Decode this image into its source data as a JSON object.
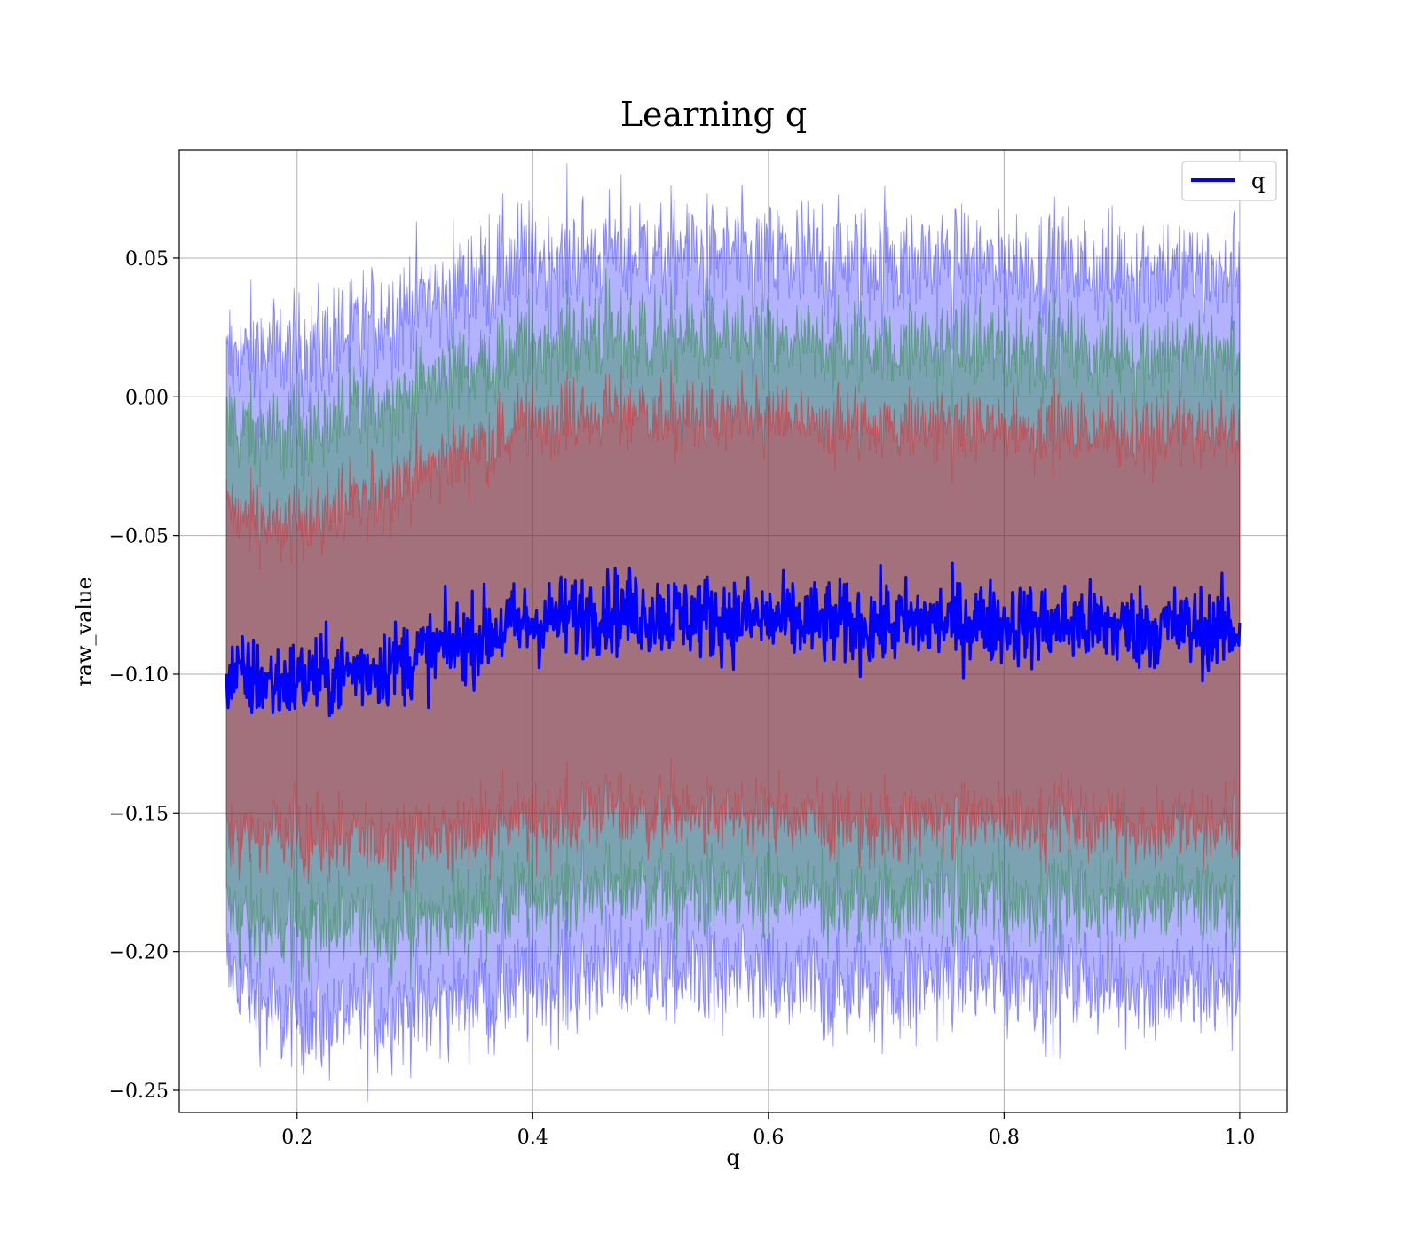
{
  "chart_data": {
    "type": "line",
    "title": "Learning q",
    "xlabel": "q",
    "ylabel": "raw_value",
    "xlim": [
      0.1,
      1.04
    ],
    "ylim": [
      -0.258,
      0.089
    ],
    "x_ticks": [
      0.2,
      0.4,
      0.6,
      0.8,
      1.0
    ],
    "x_tick_labels": [
      "0.2",
      "0.4",
      "0.6",
      "0.8",
      "1.0"
    ],
    "y_ticks": [
      0.05,
      0.0,
      -0.05,
      -0.1,
      -0.15,
      -0.2,
      -0.25
    ],
    "y_tick_labels": [
      "0.05",
      "0.00",
      "−0.05",
      "−0.10",
      "−0.15",
      "−0.20",
      "−0.25"
    ],
    "grid": true,
    "legend": {
      "position": "top-right",
      "entries": [
        "q"
      ]
    },
    "x_range": [
      0.14,
      1.0
    ],
    "series": [
      {
        "name": "q",
        "color": "#0000ff",
        "x": [
          0.14,
          0.18,
          0.22,
          0.26,
          0.3,
          0.34,
          0.38,
          0.42,
          0.46,
          0.5,
          0.54,
          0.58,
          0.62,
          0.66,
          0.7,
          0.74,
          0.78,
          0.82,
          0.86,
          0.9,
          0.94,
          0.98,
          1.0
        ],
        "y": [
          -0.1,
          -0.103,
          -0.101,
          -0.098,
          -0.094,
          -0.088,
          -0.083,
          -0.08,
          -0.077,
          -0.078,
          -0.079,
          -0.08,
          -0.081,
          -0.082,
          -0.082,
          -0.081,
          -0.081,
          -0.082,
          -0.082,
          -0.083,
          -0.083,
          -0.084,
          -0.084
        ]
      }
    ],
    "bands": [
      {
        "color": "#ff0000",
        "upper": [
          -0.04,
          -0.048,
          -0.042,
          -0.036,
          -0.028,
          -0.02,
          -0.012,
          -0.008,
          -0.006,
          -0.006,
          -0.007,
          -0.008,
          -0.009,
          -0.01,
          -0.01,
          -0.01,
          -0.01,
          -0.011,
          -0.011,
          -0.012,
          -0.012,
          -0.013,
          -0.013
        ],
        "lower": [
          -0.16,
          -0.158,
          -0.16,
          -0.16,
          -0.16,
          -0.156,
          -0.154,
          -0.152,
          -0.148,
          -0.15,
          -0.151,
          -0.152,
          -0.153,
          -0.154,
          -0.154,
          -0.152,
          -0.152,
          -0.153,
          -0.153,
          -0.154,
          -0.154,
          -0.155,
          -0.155
        ]
      },
      {
        "color": "#008000",
        "upper": [
          -0.01,
          -0.015,
          -0.01,
          -0.005,
          0.003,
          0.01,
          0.017,
          0.02,
          0.022,
          0.022,
          0.021,
          0.02,
          0.019,
          0.018,
          0.018,
          0.018,
          0.018,
          0.017,
          0.017,
          0.016,
          0.016,
          0.015,
          0.015
        ],
        "lower": [
          -0.186,
          -0.192,
          -0.19,
          -0.19,
          -0.19,
          -0.186,
          -0.182,
          -0.18,
          -0.176,
          -0.178,
          -0.179,
          -0.18,
          -0.181,
          -0.182,
          -0.182,
          -0.18,
          -0.18,
          -0.181,
          -0.181,
          -0.182,
          -0.182,
          -0.183,
          -0.183
        ]
      },
      {
        "color": "#0000ff",
        "upper": [
          0.015,
          0.015,
          0.02,
          0.025,
          0.033,
          0.04,
          0.047,
          0.05,
          0.052,
          0.052,
          0.051,
          0.05,
          0.049,
          0.048,
          0.048,
          0.048,
          0.048,
          0.047,
          0.047,
          0.046,
          0.046,
          0.045,
          0.045
        ],
        "lower": [
          -0.206,
          -0.222,
          -0.225,
          -0.222,
          -0.22,
          -0.216,
          -0.212,
          -0.21,
          -0.206,
          -0.207,
          -0.208,
          -0.21,
          -0.211,
          -0.212,
          -0.212,
          -0.21,
          -0.21,
          -0.211,
          -0.211,
          -0.212,
          -0.212,
          -0.213,
          -0.213
        ]
      }
    ]
  }
}
